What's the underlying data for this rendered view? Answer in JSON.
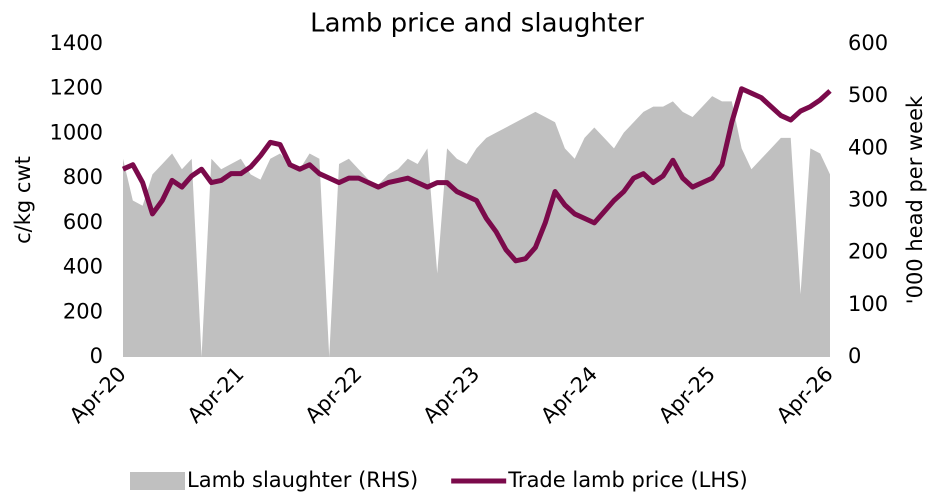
{
  "chart_data": {
    "type": "line_area",
    "title": "Lamb price and slaughter",
    "y_label": "c/kg cwt",
    "y2_label": "'000 head per week",
    "categories": [
      "Apr-20",
      null,
      null,
      null,
      null,
      null,
      null,
      null,
      null,
      null,
      null,
      null,
      "Apr-21",
      null,
      null,
      null,
      null,
      null,
      null,
      null,
      null,
      null,
      null,
      null,
      "Apr-22",
      null,
      null,
      null,
      null,
      null,
      null,
      null,
      null,
      null,
      null,
      null,
      "Apr-23",
      null,
      null,
      null,
      null,
      null,
      null,
      null,
      null,
      null,
      null,
      null,
      "Apr-24",
      null,
      null,
      null,
      null,
      null,
      null,
      null,
      null,
      null,
      null,
      null,
      "Apr-25",
      null,
      null,
      null,
      null,
      null,
      null,
      null,
      null,
      null,
      null,
      null,
      "Apr-26"
    ],
    "series": [
      {
        "name": "Lamb slaughter (RHS)",
        "color": "#c0c0c0",
        "kind": "area",
        "axis": "y2",
        "values": [
          380,
          300,
          290,
          350,
          370,
          390,
          360,
          380,
          0,
          380,
          360,
          370,
          380,
          350,
          340,
          380,
          390,
          370,
          360,
          390,
          380,
          0,
          370,
          380,
          360,
          340,
          330,
          350,
          360,
          380,
          370,
          400,
          160,
          400,
          380,
          370,
          400,
          420,
          430,
          440,
          450,
          460,
          470,
          460,
          450,
          400,
          380,
          420,
          440,
          420,
          400,
          430,
          450,
          470,
          480,
          480,
          490,
          470,
          460,
          480,
          500,
          490,
          490,
          400,
          360,
          380,
          400,
          420,
          420,
          120,
          400,
          390,
          350
        ]
      },
      {
        "name": "Trade lamb price (LHS)",
        "color": "#7b0a4b",
        "kind": "line",
        "values": [
          840,
          860,
          780,
          640,
          700,
          790,
          760,
          810,
          840,
          780,
          790,
          820,
          820,
          850,
          900,
          960,
          950,
          860,
          840,
          860,
          820,
          800,
          780,
          800,
          800,
          780,
          760,
          780,
          790,
          800,
          780,
          760,
          780,
          780,
          740,
          720,
          700,
          620,
          560,
          480,
          430,
          440,
          490,
          600,
          740,
          680,
          640,
          620,
          600,
          650,
          700,
          740,
          800,
          820,
          780,
          810,
          880,
          800,
          760,
          780,
          800,
          860,
          1050,
          1200,
          1180,
          1160,
          1120,
          1080,
          1060,
          1100,
          1120,
          1150,
          1190
        ]
      }
    ],
    "ylim": [
      0,
      1400
    ],
    "yticks": [
      0,
      200,
      400,
      600,
      800,
      1000,
      1200,
      1400
    ],
    "y2lim": [
      0,
      600
    ],
    "y2ticks": [
      0,
      100,
      200,
      300,
      400,
      500,
      600
    ],
    "legend": "bottom"
  }
}
